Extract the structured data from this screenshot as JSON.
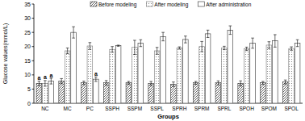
{
  "chart_data": {
    "type": "bar",
    "x_label": "Groups",
    "y_label": "Glucose values(mmol/L)",
    "categories": [
      "NC",
      "MC",
      "PC",
      "SSPH",
      "SSPM",
      "SSPL",
      "SPRH",
      "SPRM",
      "SPRL",
      "SPOH",
      "SPOM",
      "SPOL"
    ],
    "series": [
      {
        "name": "Before modeling",
        "color": "#333333",
        "values": [
          7.0,
          7.8,
          7.2,
          7.2,
          7.2,
          7.0,
          6.7,
          7.2,
          7.2,
          7.0,
          7.2,
          7.5
        ],
        "errors": [
          0.8,
          0.9,
          0.6,
          0.8,
          0.5,
          0.7,
          0.8,
          0.5,
          0.7,
          0.9,
          0.5,
          0.7
        ]
      },
      {
        "name": "After modeling",
        "color": "#777777",
        "values": [
          7.0,
          18.5,
          20.2,
          19.0,
          19.7,
          18.5,
          19.5,
          20.0,
          19.5,
          19.2,
          20.5,
          19.3
        ],
        "errors": [
          1.0,
          1.0,
          1.2,
          1.0,
          2.5,
          1.2,
          0.4,
          1.8,
          0.6,
          0.6,
          1.2,
          0.6
        ]
      },
      {
        "name": "After administration",
        "color": "#333333",
        "values": [
          7.8,
          25.0,
          8.5,
          20.3,
          21.2,
          23.5,
          22.5,
          24.5,
          25.8,
          21.2,
          22.0,
          21.2
        ],
        "errors": [
          1.0,
          2.0,
          0.8,
          0.2,
          1.2,
          1.5,
          1.2,
          1.3,
          1.5,
          1.8,
          2.2,
          1.2
        ]
      }
    ],
    "annotations": [
      {
        "text": "a",
        "category": "NC",
        "series": "Before modeling"
      },
      {
        "text": "a",
        "category": "NC",
        "series": "After modeling"
      },
      {
        "text": "a",
        "category": "NC",
        "series": "After administration"
      },
      {
        "text": "a",
        "category": "PC",
        "series": "After administration"
      }
    ],
    "ylim": [
      0,
      35
    ],
    "yticks": [
      0,
      5,
      10,
      15,
      20,
      25,
      30,
      35
    ],
    "legend": "top",
    "grid": false
  }
}
